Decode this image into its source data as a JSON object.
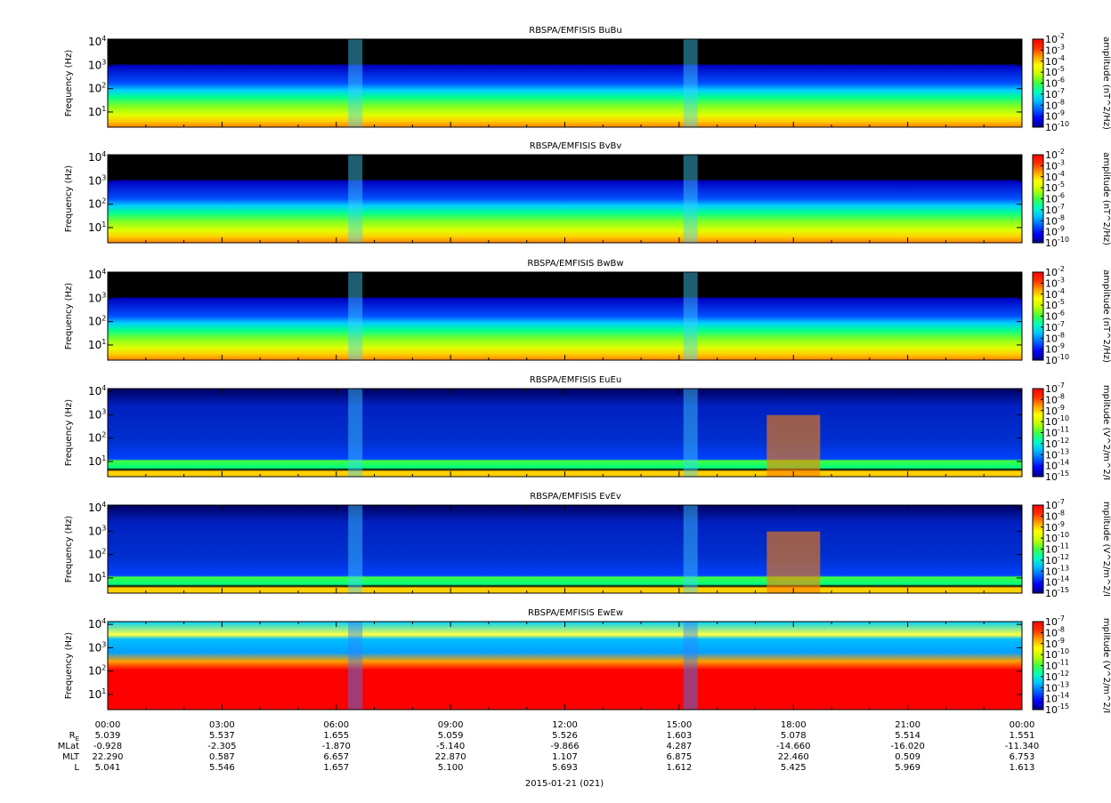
{
  "chart_data": [
    {
      "type": "heatmap",
      "title": "RBSPA/EMFISIS  BuBu",
      "ylabel": "Frequency (Hz)",
      "yscale": "log",
      "yticks": [
        "10",
        "10",
        "10",
        "10"
      ],
      "ytick_exponents": [
        "1",
        "2",
        "3",
        "4"
      ],
      "colorbar_label": "amplitude (nT^2/Hz)",
      "colorbar_ticks": [
        "10",
        "10",
        "10",
        "10",
        "10",
        "10",
        "10",
        "10",
        "10"
      ],
      "colorbar_exponents": [
        "-2",
        "-3",
        "-4",
        "-5",
        "-6",
        "-7",
        "-8",
        "-9",
        "-10"
      ],
      "colorbar_range": [
        -10,
        -2
      ]
    },
    {
      "type": "heatmap",
      "title": "RBSPA/EMFISIS  BvBv",
      "ylabel": "Frequency (Hz)",
      "yscale": "log",
      "yticks": [
        "10",
        "10",
        "10",
        "10"
      ],
      "ytick_exponents": [
        "1",
        "2",
        "3",
        "4"
      ],
      "colorbar_label": "amplitude (nT^2/Hz)",
      "colorbar_ticks": [
        "10",
        "10",
        "10",
        "10",
        "10",
        "10",
        "10",
        "10",
        "10"
      ],
      "colorbar_exponents": [
        "-2",
        "-3",
        "-4",
        "-5",
        "-6",
        "-7",
        "-8",
        "-9",
        "-10"
      ],
      "colorbar_range": [
        -10,
        -2
      ]
    },
    {
      "type": "heatmap",
      "title": "RBSPA/EMFISIS  BwBw",
      "ylabel": "Frequency (Hz)",
      "yscale": "log",
      "yticks": [
        "10",
        "10",
        "10",
        "10"
      ],
      "ytick_exponents": [
        "1",
        "2",
        "3",
        "4"
      ],
      "colorbar_label": "amplitude (nT^2/Hz)",
      "colorbar_ticks": [
        "10",
        "10",
        "10",
        "10",
        "10",
        "10",
        "10",
        "10",
        "10"
      ],
      "colorbar_exponents": [
        "-2",
        "-3",
        "-4",
        "-5",
        "-6",
        "-7",
        "-8",
        "-9",
        "-10"
      ],
      "colorbar_range": [
        -10,
        -2
      ]
    },
    {
      "type": "heatmap",
      "title": "RBSPA/EMFISIS  EuEu",
      "ylabel": "Frequency (Hz)",
      "yscale": "log",
      "yticks": [
        "10",
        "10",
        "10",
        "10"
      ],
      "ytick_exponents": [
        "1",
        "2",
        "3",
        "4"
      ],
      "colorbar_label": "mplitude (V^2/m^2/I",
      "colorbar_ticks": [
        "10",
        "10",
        "10",
        "10",
        "10",
        "10",
        "10",
        "10",
        "10"
      ],
      "colorbar_exponents": [
        "-7",
        "-8",
        "-9",
        "-10",
        "-11",
        "-12",
        "-13",
        "-14",
        "-15"
      ],
      "colorbar_range": [
        -15,
        -7
      ]
    },
    {
      "type": "heatmap",
      "title": "RBSPA/EMFISIS  EvEv",
      "ylabel": "Frequency (Hz)",
      "yscale": "log",
      "yticks": [
        "10",
        "10",
        "10",
        "10"
      ],
      "ytick_exponents": [
        "1",
        "2",
        "3",
        "4"
      ],
      "colorbar_label": "mplitude (V^2/m^2/I",
      "colorbar_ticks": [
        "10",
        "10",
        "10",
        "10",
        "10",
        "10",
        "10",
        "10",
        "10"
      ],
      "colorbar_exponents": [
        "-7",
        "-8",
        "-9",
        "-10",
        "-11",
        "-12",
        "-13",
        "-14",
        "-15"
      ],
      "colorbar_range": [
        -15,
        -7
      ]
    },
    {
      "type": "heatmap",
      "title": "RBSPA/EMFISIS  EwEw",
      "ylabel": "Frequency (Hz)",
      "yscale": "log",
      "yticks": [
        "10",
        "10",
        "10",
        "10"
      ],
      "ytick_exponents": [
        "1",
        "2",
        "3",
        "4"
      ],
      "colorbar_label": "mplitude (V^2/m^2/I",
      "colorbar_ticks": [
        "10",
        "10",
        "10",
        "10",
        "10",
        "10",
        "10",
        "10",
        "10"
      ],
      "colorbar_exponents": [
        "-7",
        "-8",
        "-9",
        "-10",
        "-11",
        "-12",
        "-13",
        "-14",
        "-15"
      ],
      "colorbar_range": [
        -15,
        -7
      ]
    }
  ],
  "time_axis": {
    "ticks": [
      "00:00",
      "03:00",
      "06:00",
      "09:00",
      "12:00",
      "15:00",
      "18:00",
      "21:00",
      "00:00"
    ],
    "date_label": "2015-01-21 (021)"
  },
  "ephemeris": [
    {
      "label": "R",
      "label_sub": "E",
      "values": [
        "5.039",
        "5.537",
        "1.655",
        "5.059",
        "5.526",
        "1.603",
        "5.078",
        "5.514",
        "1.551"
      ]
    },
    {
      "label": "MLat",
      "label_sub": "",
      "values": [
        "-0.928",
        "-2.305",
        "-1.870",
        "-5.140",
        "-9.866",
        "4.287",
        "-14.660",
        "-16.020",
        "-11.340"
      ]
    },
    {
      "label": "MLT",
      "label_sub": "",
      "values": [
        "22.290",
        "0.587",
        "6.657",
        "22.870",
        "1.107",
        "6.875",
        "22.460",
        "0.509",
        "6.753"
      ]
    },
    {
      "label": "L",
      "label_sub": "",
      "values": [
        "5.041",
        "5.546",
        "1.657",
        "5.100",
        "5.693",
        "1.612",
        "5.425",
        "5.969",
        "1.613"
      ]
    }
  ],
  "colors": {
    "colormap": [
      "#000080",
      "#0000ff",
      "#0060ff",
      "#00c0ff",
      "#00ffc0",
      "#40ff40",
      "#c0ff00",
      "#ffff00",
      "#ffa000",
      "#ff3000",
      "#ff0000"
    ],
    "background": "#000000"
  }
}
